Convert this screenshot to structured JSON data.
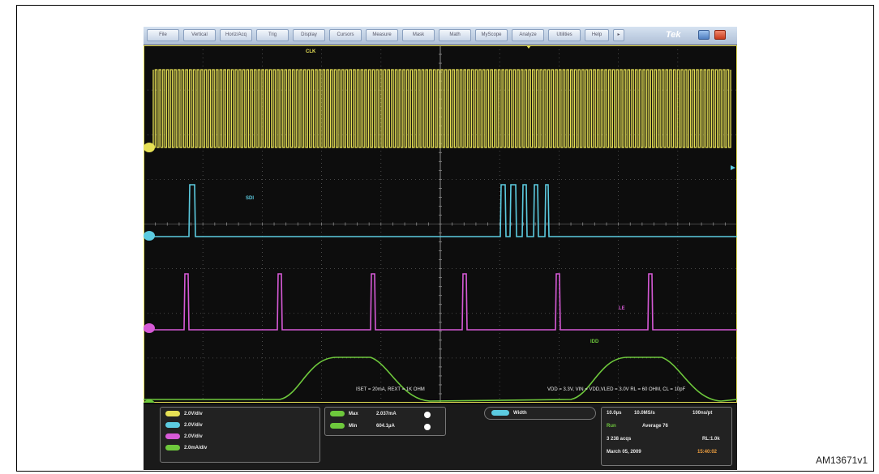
{
  "figure_id": "AM13671v1",
  "menus": [
    "File",
    "Vertical",
    "Horiz/Acq",
    "Trig",
    "Display",
    "Cursors",
    "Measure",
    "Mask",
    "Math",
    "MyScope",
    "Analyze",
    "Utilities",
    "Help"
  ],
  "brand": "Tek",
  "channel_labels": {
    "ch1": "CLK",
    "ch2": "SDI",
    "ch3": "LE",
    "ch4": "IDD"
  },
  "annotations": {
    "left": "ISET = 20mA, REXT = 1K OHM",
    "right": "VDD = 3.3V, VIN = VDD,VLED = 3.0V    RL = 60 OHM, CL = 10pF"
  },
  "scales": [
    {
      "text": "2.0V/div",
      "color": "#e6e055"
    },
    {
      "text": "2.0V/div",
      "color": "#5ccbe0"
    },
    {
      "text": "2.0V/div",
      "color": "#d65ad6"
    },
    {
      "text": "2.0mA/div",
      "color": "#6ec83c"
    }
  ],
  "measurements": [
    {
      "label": "Max",
      "value": "2.037mA"
    },
    {
      "label": "Min",
      "value": "604.1µA"
    }
  ],
  "width_label": "Width",
  "timebase": {
    "time_per_div": "10.0µs",
    "sample_rate": "10.0MS/s",
    "point_time": "100ns/pt",
    "run_state": "Run",
    "acq_mode": "Average 76",
    "acqs": "3 238 acqs",
    "record_length": "RL:1.0k",
    "date": "March 05, 2009",
    "time": "15:40:02"
  },
  "colors": {
    "ch1": "#e6e055",
    "ch2": "#5ccbe0",
    "ch3": "#d65ad6",
    "ch4": "#6ec83c"
  }
}
